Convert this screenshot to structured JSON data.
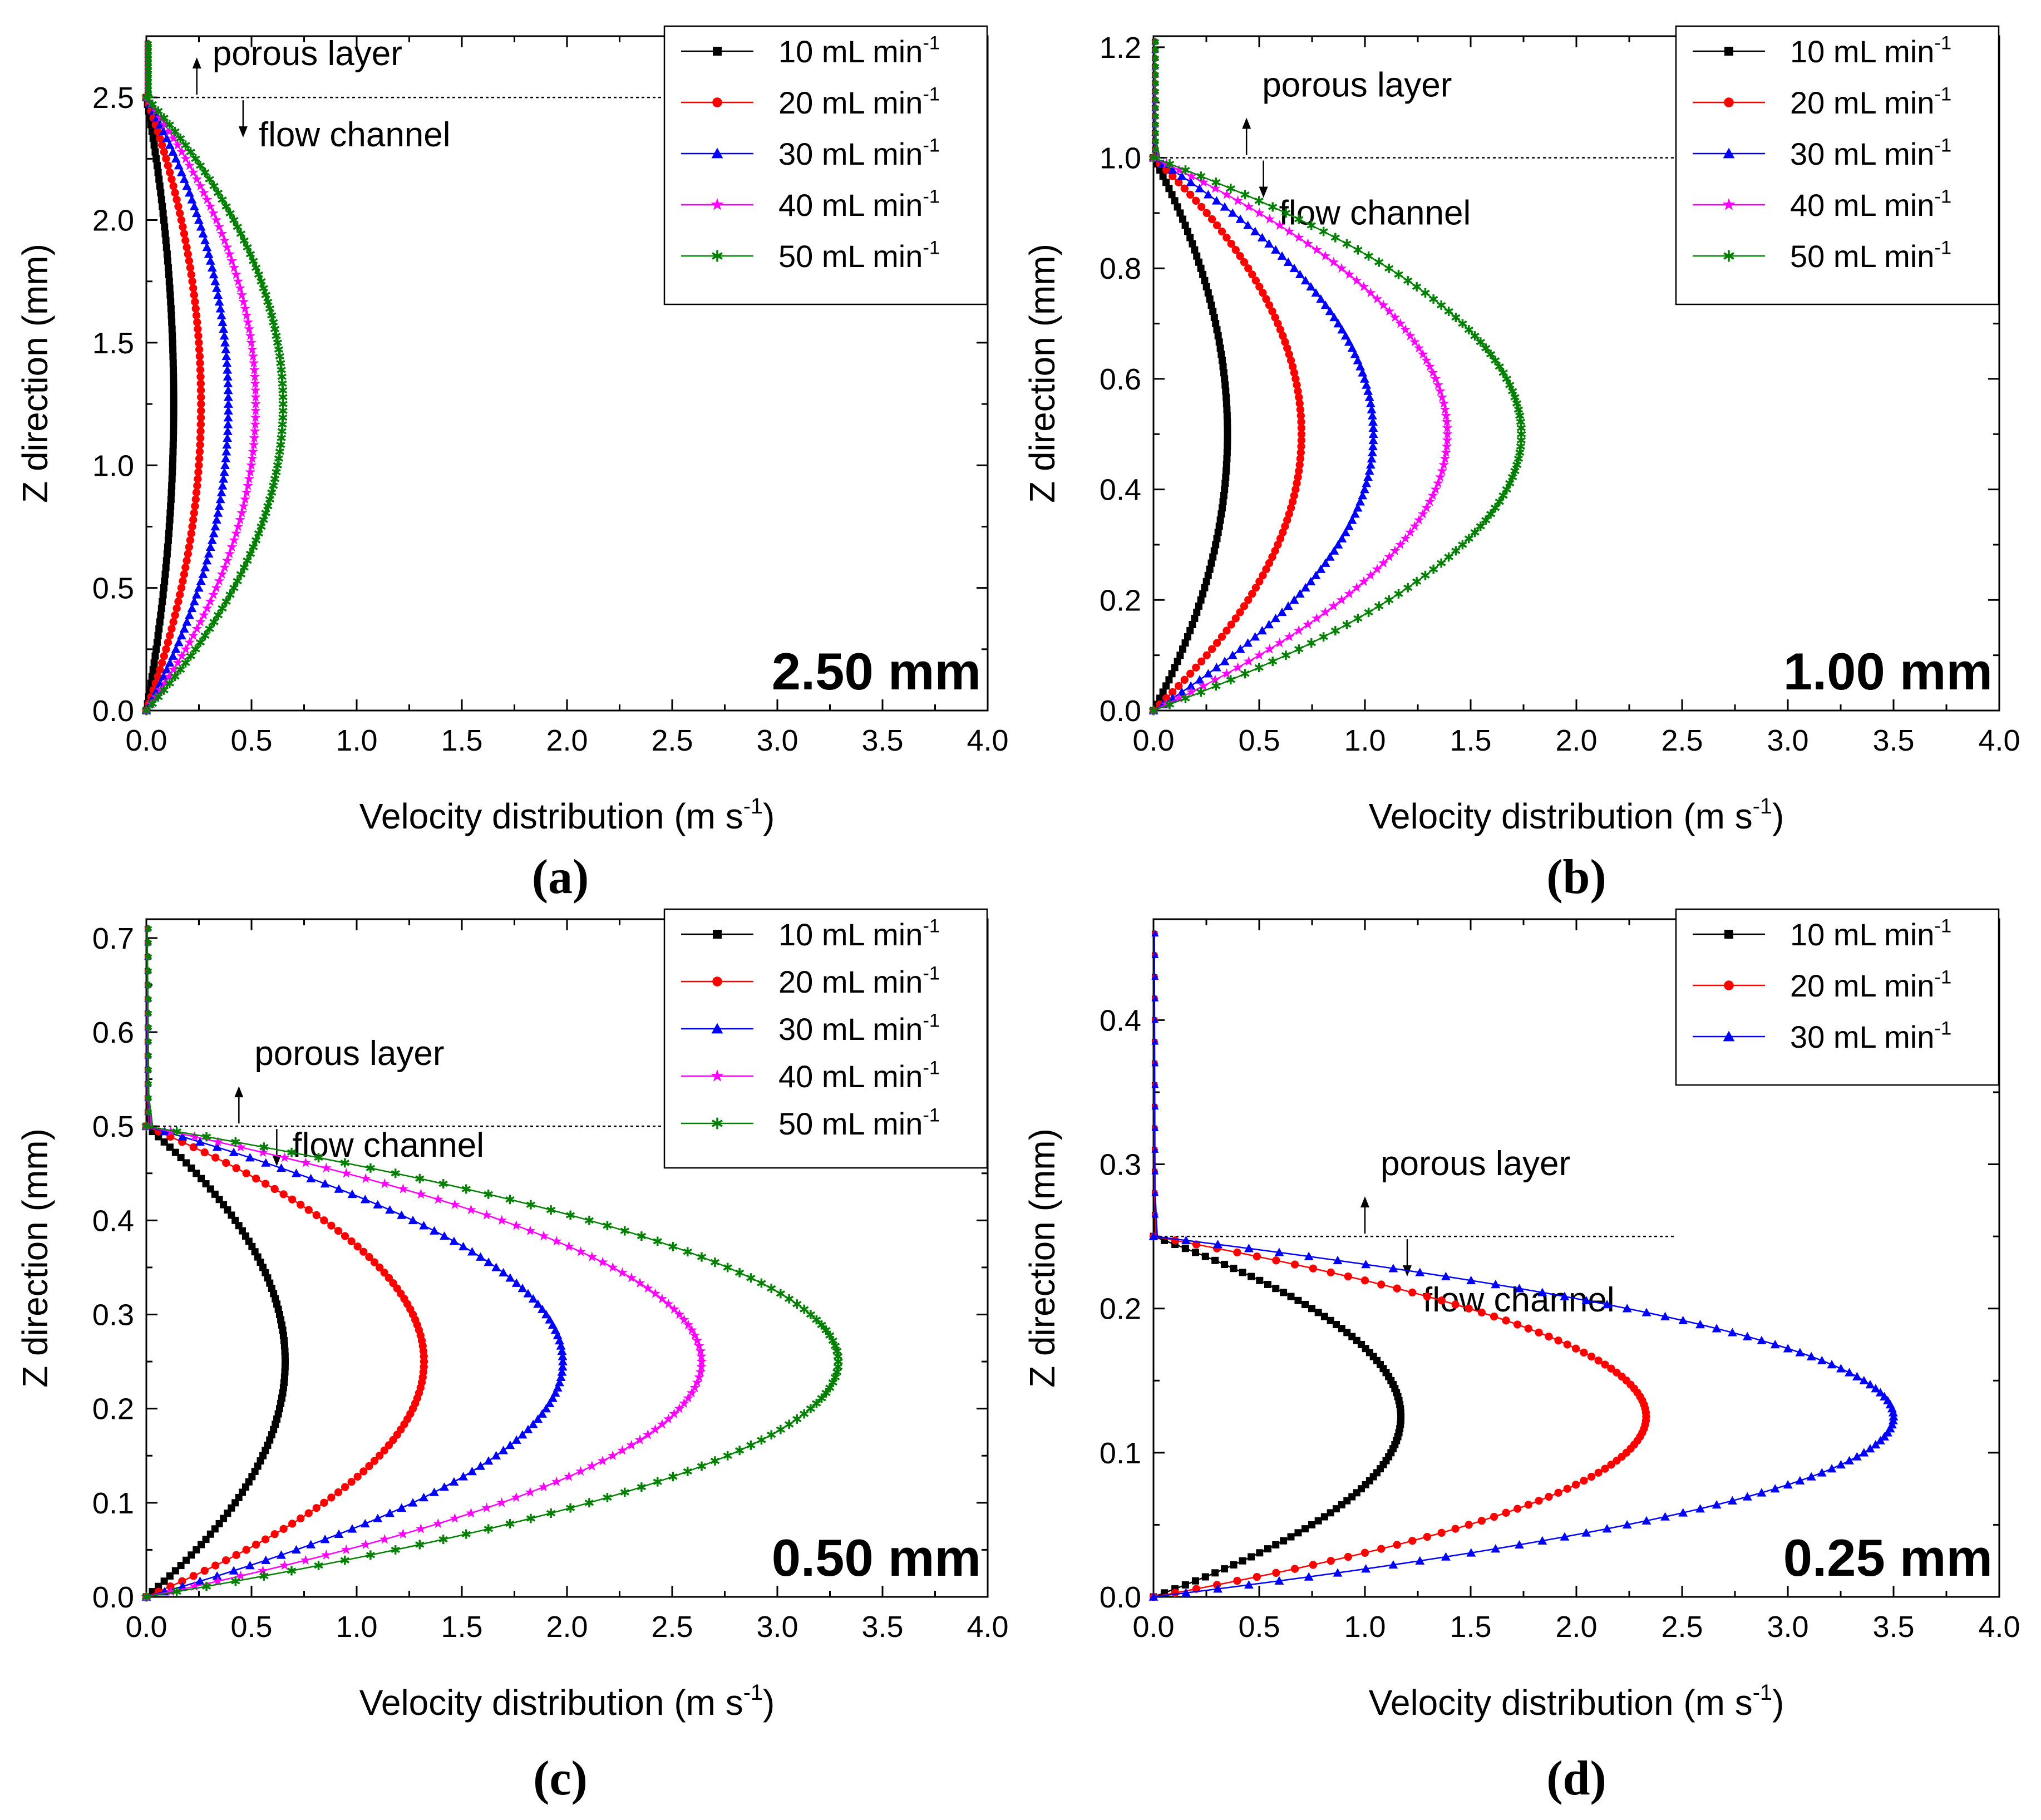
{
  "chart_data": [
    {
      "type": "line",
      "panel_label": "(a)",
      "thickness_label": "2.50 mm",
      "xlabel": "Velocity distribution (m s",
      "xlabel_sup": "-1",
      "xlabel_end": ")",
      "ylabel": "Z direction (mm)",
      "xlim": [
        0,
        4.0
      ],
      "ylim": [
        0,
        2.75
      ],
      "xticks": [
        "0.0",
        "0.5",
        "1.0",
        "1.5",
        "2.0",
        "2.5",
        "3.0",
        "3.5",
        "4.0"
      ],
      "yticks": [
        "0.0",
        "0.5",
        "1.0",
        "1.5",
        "2.0",
        "2.5"
      ],
      "ytick_values": [
        0,
        0.5,
        1.0,
        1.5,
        2.0,
        2.5
      ],
      "channel_height": 2.5,
      "porous_top": 2.72,
      "porous_label": "porous layer",
      "channel_label": "flow channel",
      "legend_position": "top-right",
      "grid": false,
      "series": [
        {
          "name": "10 mL min",
          "sup": "-1",
          "color": "#000000",
          "marker": "square",
          "peak_velocity": 0.13
        },
        {
          "name": "20 mL min",
          "sup": "-1",
          "color": "#ff0000",
          "marker": "circle",
          "peak_velocity": 0.26
        },
        {
          "name": "30 mL min",
          "sup": "-1",
          "color": "#0000ff",
          "marker": "triangle",
          "peak_velocity": 0.39
        },
        {
          "name": "40 mL min",
          "sup": "-1",
          "color": "#ff00ff",
          "marker": "star",
          "peak_velocity": 0.52
        },
        {
          "name": "50 mL min",
          "sup": "-1",
          "color": "#008000",
          "marker": "asterisk",
          "peak_velocity": 0.65
        }
      ]
    },
    {
      "type": "line",
      "panel_label": "(b)",
      "thickness_label": "1.00 mm",
      "xlabel": "Velocity distribution (m s",
      "xlabel_sup": "-1",
      "xlabel_end": ")",
      "ylabel": "Z direction (mm)",
      "xlim": [
        0,
        4.0
      ],
      "ylim": [
        0,
        1.22
      ],
      "xticks": [
        "0.0",
        "0.5",
        "1.0",
        "1.5",
        "2.0",
        "2.5",
        "3.0",
        "3.5",
        "4.0"
      ],
      "yticks": [
        "0.0",
        "0.2",
        "0.4",
        "0.6",
        "0.8",
        "1.0",
        "1.2"
      ],
      "ytick_values": [
        0,
        0.2,
        0.4,
        0.6,
        0.8,
        1.0,
        1.2
      ],
      "channel_height": 1.0,
      "porous_top": 1.21,
      "porous_label": "porous layer",
      "channel_label": "flow channel",
      "legend_position": "top-right",
      "grid": false,
      "series": [
        {
          "name": "10 mL min",
          "sup": "-1",
          "color": "#000000",
          "marker": "square",
          "peak_velocity": 0.35
        },
        {
          "name": "20 mL min",
          "sup": "-1",
          "color": "#ff0000",
          "marker": "circle",
          "peak_velocity": 0.7
        },
        {
          "name": "30 mL min",
          "sup": "-1",
          "color": "#0000ff",
          "marker": "triangle",
          "peak_velocity": 1.04
        },
        {
          "name": "40 mL min",
          "sup": "-1",
          "color": "#ff00ff",
          "marker": "star",
          "peak_velocity": 1.39
        },
        {
          "name": "50 mL min",
          "sup": "-1",
          "color": "#008000",
          "marker": "asterisk",
          "peak_velocity": 1.74
        }
      ]
    },
    {
      "type": "line",
      "panel_label": "(c)",
      "thickness_label": "0.50 mm",
      "xlabel": "Velocity distribution (m s",
      "xlabel_sup": "-1",
      "xlabel_end": ")",
      "ylabel": "Z direction (mm)",
      "xlim": [
        0,
        4.0
      ],
      "ylim": [
        0,
        0.72
      ],
      "xticks": [
        "0.0",
        "0.5",
        "1.0",
        "1.5",
        "2.0",
        "2.5",
        "3.0",
        "3.5",
        "4.0"
      ],
      "yticks": [
        "0.0",
        "0.1",
        "0.2",
        "0.3",
        "0.4",
        "0.5",
        "0.6",
        "0.7"
      ],
      "ytick_values": [
        0,
        0.1,
        0.2,
        0.3,
        0.4,
        0.5,
        0.6,
        0.7
      ],
      "channel_height": 0.5,
      "porous_top": 0.71,
      "porous_label": "porous layer",
      "channel_label": "flow channel",
      "legend_position": "top-right",
      "grid": false,
      "series": [
        {
          "name": "10 mL min",
          "sup": "-1",
          "color": "#000000",
          "marker": "square",
          "peak_velocity": 0.66
        },
        {
          "name": "20 mL min",
          "sup": "-1",
          "color": "#ff0000",
          "marker": "circle",
          "peak_velocity": 1.32
        },
        {
          "name": "30 mL min",
          "sup": "-1",
          "color": "#0000ff",
          "marker": "triangle",
          "peak_velocity": 1.98
        },
        {
          "name": "40 mL min",
          "sup": "-1",
          "color": "#ff00ff",
          "marker": "star",
          "peak_velocity": 2.64
        },
        {
          "name": "50 mL min",
          "sup": "-1",
          "color": "#008000",
          "marker": "asterisk",
          "peak_velocity": 3.29
        }
      ]
    },
    {
      "type": "line",
      "panel_label": "(d)",
      "thickness_label": "0.25 mm",
      "xlabel": "Velocity distribution (m s",
      "xlabel_sup": "-1",
      "xlabel_end": ")",
      "ylabel": "Z direction (mm)",
      "xlim": [
        0,
        4.0
      ],
      "ylim": [
        0,
        0.47
      ],
      "xticks": [
        "0.0",
        "0.5",
        "1.0",
        "1.5",
        "2.0",
        "2.5",
        "3.0",
        "3.5",
        "4.0"
      ],
      "yticks": [
        "0.0",
        "0.1",
        "0.2",
        "0.3",
        "0.4"
      ],
      "ytick_values": [
        0,
        0.1,
        0.2,
        0.3,
        0.4
      ],
      "channel_height": 0.25,
      "porous_top": 0.46,
      "porous_label": "porous layer",
      "channel_label": "flow channel",
      "legend_position": "top-right",
      "grid": false,
      "series": [
        {
          "name": "10 mL min",
          "sup": "-1",
          "color": "#000000",
          "marker": "square",
          "peak_velocity": 1.17
        },
        {
          "name": "20 mL min",
          "sup": "-1",
          "color": "#ff0000",
          "marker": "circle",
          "peak_velocity": 2.33
        },
        {
          "name": "30 mL min",
          "sup": "-1",
          "color": "#0000ff",
          "marker": "triangle",
          "peak_velocity": 3.5
        }
      ]
    }
  ]
}
